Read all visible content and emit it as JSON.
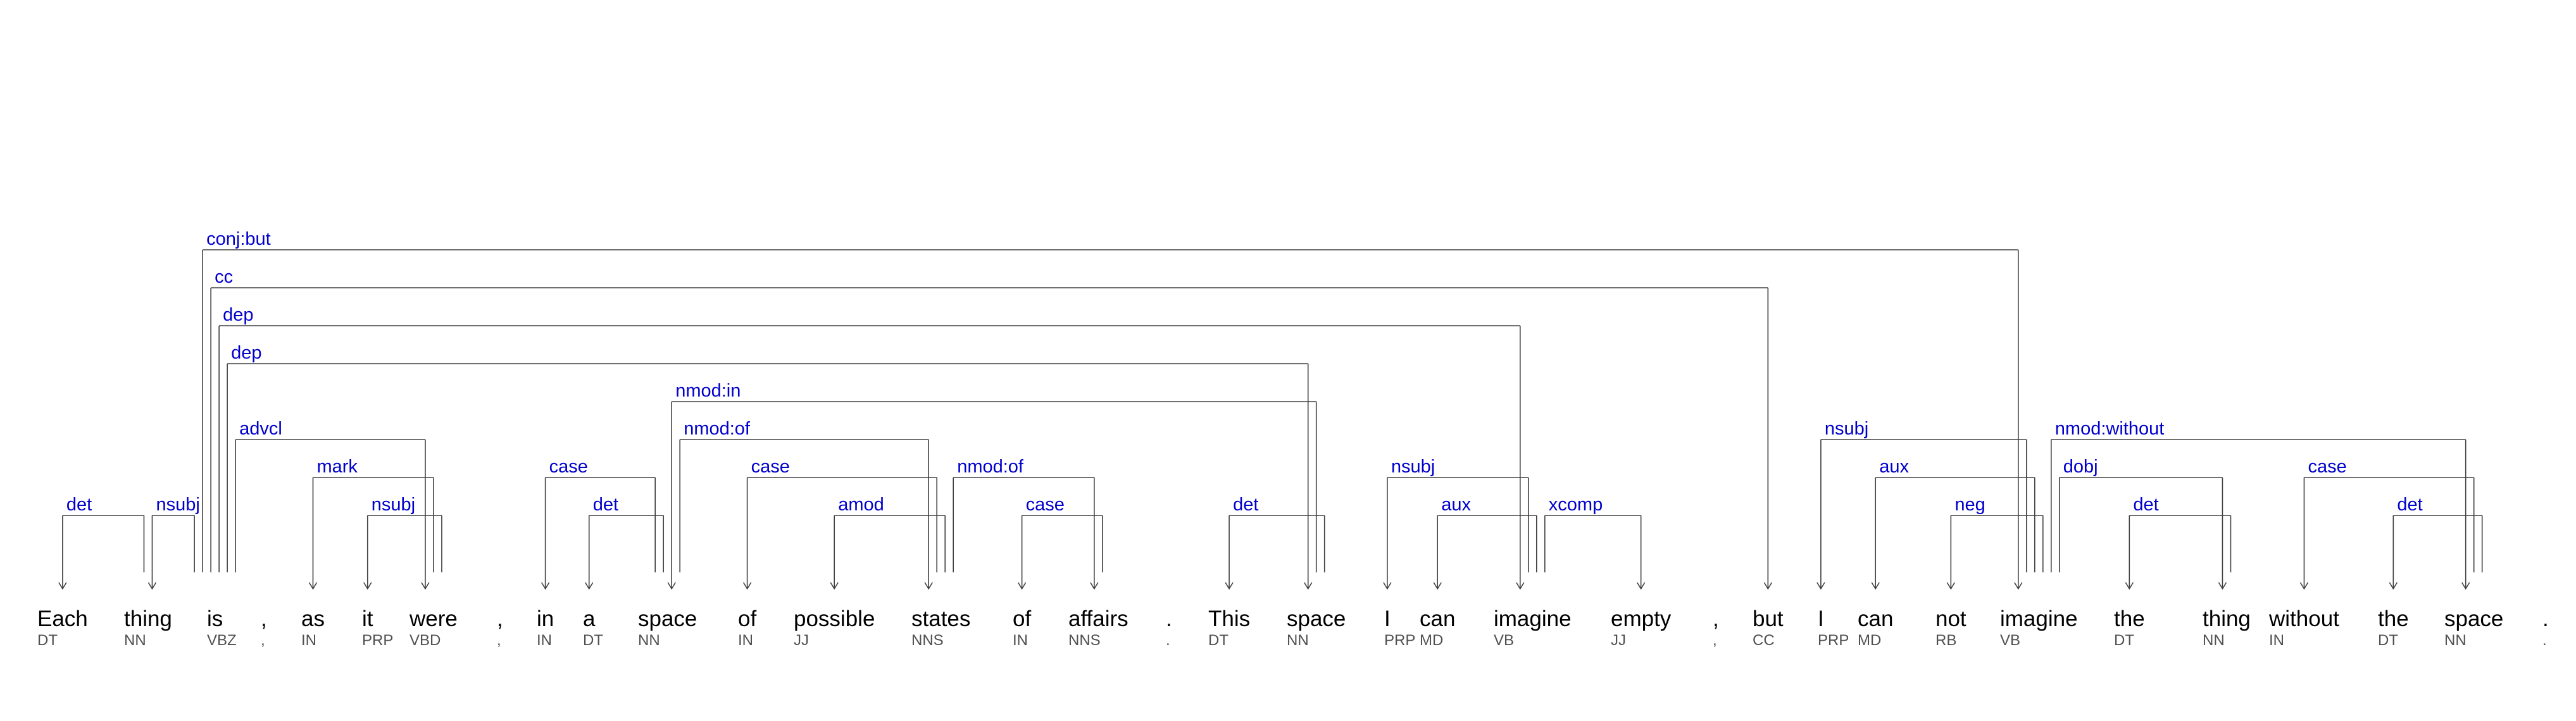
{
  "colors": {
    "label": "#0000cc",
    "arc": "#404040",
    "word": "#000000",
    "tag": "#505050"
  },
  "tokens": [
    {
      "word": "Each",
      "tag": "DT"
    },
    {
      "word": "thing",
      "tag": "NN"
    },
    {
      "word": "is",
      "tag": "VBZ"
    },
    {
      "word": ",",
      "tag": ","
    },
    {
      "word": "as",
      "tag": "IN"
    },
    {
      "word": "it",
      "tag": "PRP"
    },
    {
      "word": "were",
      "tag": "VBD"
    },
    {
      "word": ",",
      "tag": ","
    },
    {
      "word": "in",
      "tag": "IN"
    },
    {
      "word": "a",
      "tag": "DT"
    },
    {
      "word": "space",
      "tag": "NN"
    },
    {
      "word": "of",
      "tag": "IN"
    },
    {
      "word": "possible",
      "tag": "JJ"
    },
    {
      "word": "states",
      "tag": "NNS"
    },
    {
      "word": "of",
      "tag": "IN"
    },
    {
      "word": "affairs",
      "tag": "NNS"
    },
    {
      "word": ".",
      "tag": "."
    },
    {
      "word": "This",
      "tag": "DT"
    },
    {
      "word": "space",
      "tag": "NN"
    },
    {
      "word": "I",
      "tag": "PRP"
    },
    {
      "word": "can",
      "tag": "MD"
    },
    {
      "word": "imagine",
      "tag": "VB"
    },
    {
      "word": "empty",
      "tag": "JJ"
    },
    {
      "word": ",",
      "tag": ","
    },
    {
      "word": "but",
      "tag": "CC"
    },
    {
      "word": "I",
      "tag": "PRP"
    },
    {
      "word": "can",
      "tag": "MD"
    },
    {
      "word": "not",
      "tag": "RB"
    },
    {
      "word": "imagine",
      "tag": "VB"
    },
    {
      "word": "the",
      "tag": "DT"
    },
    {
      "word": "thing",
      "tag": "NN"
    },
    {
      "word": "without",
      "tag": "IN"
    },
    {
      "word": "the",
      "tag": "DT"
    },
    {
      "word": "space",
      "tag": "NN"
    },
    {
      "word": ".",
      "tag": "."
    }
  ],
  "arcs": [
    {
      "label": "det",
      "head": 1,
      "dep": 0
    },
    {
      "label": "nsubj",
      "head": 2,
      "dep": 1
    },
    {
      "label": "mark",
      "head": 6,
      "dep": 4
    },
    {
      "label": "nsubj",
      "head": 6,
      "dep": 5
    },
    {
      "label": "advcl",
      "head": 2,
      "dep": 6
    },
    {
      "label": "case",
      "head": 10,
      "dep": 8
    },
    {
      "label": "det",
      "head": 10,
      "dep": 9
    },
    {
      "label": "nmod:in",
      "head": 18,
      "dep": 10
    },
    {
      "label": "case",
      "head": 13,
      "dep": 11
    },
    {
      "label": "amod",
      "head": 13,
      "dep": 12
    },
    {
      "label": "nmod:of",
      "head": 10,
      "dep": 13
    },
    {
      "label": "case",
      "head": 15,
      "dep": 14
    },
    {
      "label": "nmod:of",
      "head": 13,
      "dep": 15
    },
    {
      "label": "det",
      "head": 18,
      "dep": 17
    },
    {
      "label": "dep",
      "head": 2,
      "dep": 18
    },
    {
      "label": "nsubj",
      "head": 21,
      "dep": 19
    },
    {
      "label": "aux",
      "head": 21,
      "dep": 20
    },
    {
      "label": "dep",
      "head": 2,
      "dep": 21
    },
    {
      "label": "xcomp",
      "head": 21,
      "dep": 22
    },
    {
      "label": "cc",
      "head": 2,
      "dep": 24
    },
    {
      "label": "nsubj",
      "head": 28,
      "dep": 25
    },
    {
      "label": "aux",
      "head": 28,
      "dep": 26
    },
    {
      "label": "neg",
      "head": 28,
      "dep": 27
    },
    {
      "label": "conj:but",
      "head": 2,
      "dep": 28
    },
    {
      "label": "det",
      "head": 30,
      "dep": 29
    },
    {
      "label": "dobj",
      "head": 28,
      "dep": 30
    },
    {
      "label": "case",
      "head": 33,
      "dep": 31
    },
    {
      "label": "det",
      "head": 33,
      "dep": 32
    },
    {
      "label": "nmod:without",
      "head": 28,
      "dep": 33
    }
  ]
}
